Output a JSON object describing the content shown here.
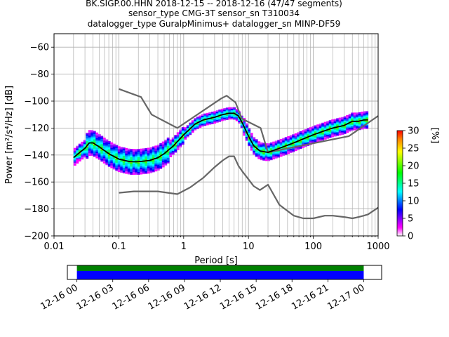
{
  "title_lines": [
    "BK.SIGP.00.HHN   2018-12-15 -- 2018-12-16  (47/47 segments)",
    "sensor_type CMG-3T sensor_sn T310034",
    "datalogger_type GuralpMinimus+ datalogger_sn MINP-DF59"
  ],
  "colors": {
    "low_noise_model": "#666666",
    "mode_curve": "#000000",
    "coverage_green": "#008000",
    "coverage_blue": "#0000ff"
  },
  "chart_data": [
    {
      "type": "heatmap",
      "xlabel": "Period [s]",
      "ylabel": "Power [m²/s⁴/Hz] [dB]",
      "xscale": "log",
      "xlim": [
        0.01,
        1000
      ],
      "ylim": [
        -200,
        -50
      ],
      "xticks": [
        {
          "v": 0.01,
          "label": "0.01"
        },
        {
          "v": 0.1,
          "label": "0.1"
        },
        {
          "v": 1,
          "label": "1"
        },
        {
          "v": 10,
          "label": "10"
        },
        {
          "v": 100,
          "label": "100"
        },
        {
          "v": 1000,
          "label": "1000"
        }
      ],
      "yticks": [
        -60,
        -80,
        -100,
        -120,
        -140,
        -160,
        -180,
        -200
      ],
      "grid": true,
      "colorbar": {
        "label": "[%]",
        "min": 0,
        "max": 30,
        "ticks": [
          0,
          5,
          10,
          15,
          20,
          25,
          30
        ]
      },
      "series": [
        {
          "role": "mode",
          "x": [
            0.02,
            0.025,
            0.03,
            0.035,
            0.04,
            0.05,
            0.07,
            0.1,
            0.15,
            0.2,
            0.3,
            0.4,
            0.5,
            0.7,
            1,
            1.5,
            2,
            3,
            4,
            5,
            6,
            7,
            8,
            10,
            12,
            15,
            20,
            30,
            50,
            70,
            100,
            150,
            200,
            300,
            400,
            500,
            600,
            700
          ],
          "y": [
            -142,
            -138,
            -135,
            -131,
            -131,
            -134,
            -139,
            -143,
            -145,
            -145,
            -144,
            -142,
            -139,
            -133,
            -125,
            -117,
            -114,
            -112,
            -110,
            -109,
            -109,
            -111,
            -116,
            -126,
            -133,
            -137,
            -138,
            -135,
            -131,
            -128,
            -125,
            -122,
            -120,
            -118,
            -115,
            -115,
            -114,
            -114
          ]
        },
        {
          "role": "nhnm",
          "x": [
            0.1,
            0.22,
            0.32,
            0.8,
            3.8,
            4.6,
            6.3,
            7.9,
            15.4,
            20,
            354.8,
            1000
          ],
          "y": [
            -91,
            -97,
            -110,
            -120,
            -98,
            -96,
            -101,
            -113,
            -120,
            -138,
            -126,
            -111
          ]
        },
        {
          "role": "nlnm",
          "x": [
            0.1,
            0.17,
            0.4,
            0.8,
            1.26,
            2,
            3,
            4,
            5,
            6,
            7,
            8,
            10,
            12,
            15,
            20,
            30,
            50,
            70,
            100,
            150,
            200,
            300,
            400,
            500,
            600,
            700,
            1000
          ],
          "y": [
            -168,
            -167,
            -167,
            -169,
            -164,
            -157,
            -149,
            -144,
            -141,
            -141,
            -148,
            -152,
            -158,
            -163,
            -166,
            -162,
            -177,
            -185,
            -187,
            -187,
            -185,
            -185,
            -186,
            -187,
            -186,
            -185,
            -184,
            -179
          ]
        }
      ]
    },
    {
      "type": "timeline",
      "tick_labels": [
        "12-16 00",
        "12-16 03",
        "12-16 06",
        "12-16 09",
        "12-16 12",
        "12-16 15",
        "12-16 18",
        "12-16 21",
        "12-17 00"
      ],
      "range_hours": [
        -0.8,
        25.5
      ],
      "coverage_hours": [
        0,
        24
      ]
    }
  ]
}
